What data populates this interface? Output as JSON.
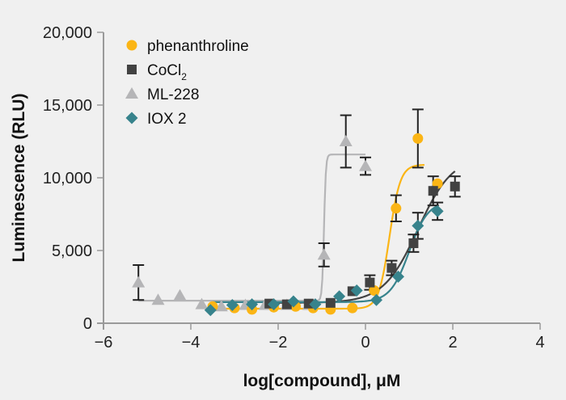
{
  "chart_data": {
    "type": "scatter",
    "title": "",
    "xlabel": "log[compound], μM",
    "ylabel": "Luminescence (RLU)",
    "xlim": [
      -6,
      4
    ],
    "ylim": [
      0,
      20000
    ],
    "xticks": [
      -6,
      -4,
      -2,
      0,
      2,
      4
    ],
    "xtick_labels": [
      "−6",
      "−4",
      "−2",
      "0",
      "2",
      "4"
    ],
    "yticks": [
      0,
      5000,
      10000,
      15000,
      20000
    ],
    "ytick_labels": [
      "0",
      "5,000",
      "10,000",
      "15,000",
      "20,000"
    ],
    "grid": false,
    "legend_position": "top-left",
    "series": [
      {
        "name": "phenanthroline",
        "name_main": "phenanthroline",
        "name_sub": "",
        "marker": "circle",
        "color": "#fbb515",
        "x": [
          -3.5,
          -3.0,
          -2.6,
          -2.1,
          -1.6,
          -1.2,
          -0.8,
          -0.3,
          0.2,
          0.7,
          1.2,
          1.65
        ],
        "y": [
          1150,
          1050,
          950,
          1100,
          1150,
          1050,
          950,
          1050,
          2250,
          7900,
          12700,
          9600
        ],
        "err": [
          0,
          0,
          0,
          0,
          0,
          0,
          0,
          0,
          0,
          900,
          2000,
          0
        ],
        "fit": {
          "bottom": 1000,
          "top": 10900,
          "logec50": 0.55,
          "hill": 3.5,
          "xmin": -3.3,
          "xmax": 1.35
        }
      },
      {
        "name": "CoCl2",
        "name_main": "CoCl",
        "name_sub": "2",
        "marker": "square",
        "color": "#424242",
        "x": [
          -2.2,
          -1.8,
          -1.3,
          -0.8,
          -0.3,
          0.1,
          0.6,
          1.1,
          1.55,
          2.05
        ],
        "y": [
          1350,
          1300,
          1350,
          1400,
          2200,
          2800,
          3800,
          5500,
          9100,
          9400
        ],
        "err": [
          0,
          0,
          0,
          0,
          0,
          500,
          500,
          600,
          1000,
          700
        ],
        "fit": {
          "bottom": 1400,
          "top": 11500,
          "logec50": 1.2,
          "hill": 1.1,
          "xmin": -2.2,
          "xmax": 2.05
        }
      },
      {
        "name": "ML-228",
        "name_main": "ML-228",
        "name_sub": "",
        "marker": "triangle",
        "color": "#b5b5b7",
        "x": [
          -5.2,
          -4.75,
          -4.25,
          -3.75,
          -3.3,
          -2.75,
          -2.3,
          -1.8,
          -1.3,
          -0.95,
          -0.45,
          0.0
        ],
        "y": [
          2800,
          1600,
          1900,
          1300,
          1150,
          1250,
          1250,
          1250,
          1250,
          4700,
          12500,
          10800
        ],
        "err": [
          1200,
          0,
          0,
          0,
          0,
          0,
          0,
          0,
          0,
          800,
          1800,
          600
        ],
        "fit": {
          "bottom": 1550,
          "top": 11600,
          "logec50": -0.95,
          "hill": 20,
          "xmin": -5.2,
          "xmax": 0.0
        }
      },
      {
        "name": "IOX 2",
        "name_main": "IOX 2",
        "name_sub": "",
        "marker": "diamond",
        "color": "#37838c",
        "x": [
          -3.55,
          -3.05,
          -2.6,
          -2.1,
          -1.65,
          -1.15,
          -0.6,
          -0.2,
          0.25,
          0.75,
          1.2,
          1.65
        ],
        "y": [
          900,
          1250,
          1300,
          1300,
          1500,
          1300,
          1850,
          2250,
          1600,
          3200,
          6700,
          7700
        ],
        "err": [
          0,
          0,
          0,
          0,
          0,
          0,
          0,
          0,
          0,
          0,
          900,
          600
        ],
        "fit": {
          "bottom": 1450,
          "top": 8400,
          "logec50": 1.0,
          "hill": 2.0,
          "xmin": -3.5,
          "xmax": 1.65
        }
      }
    ]
  }
}
